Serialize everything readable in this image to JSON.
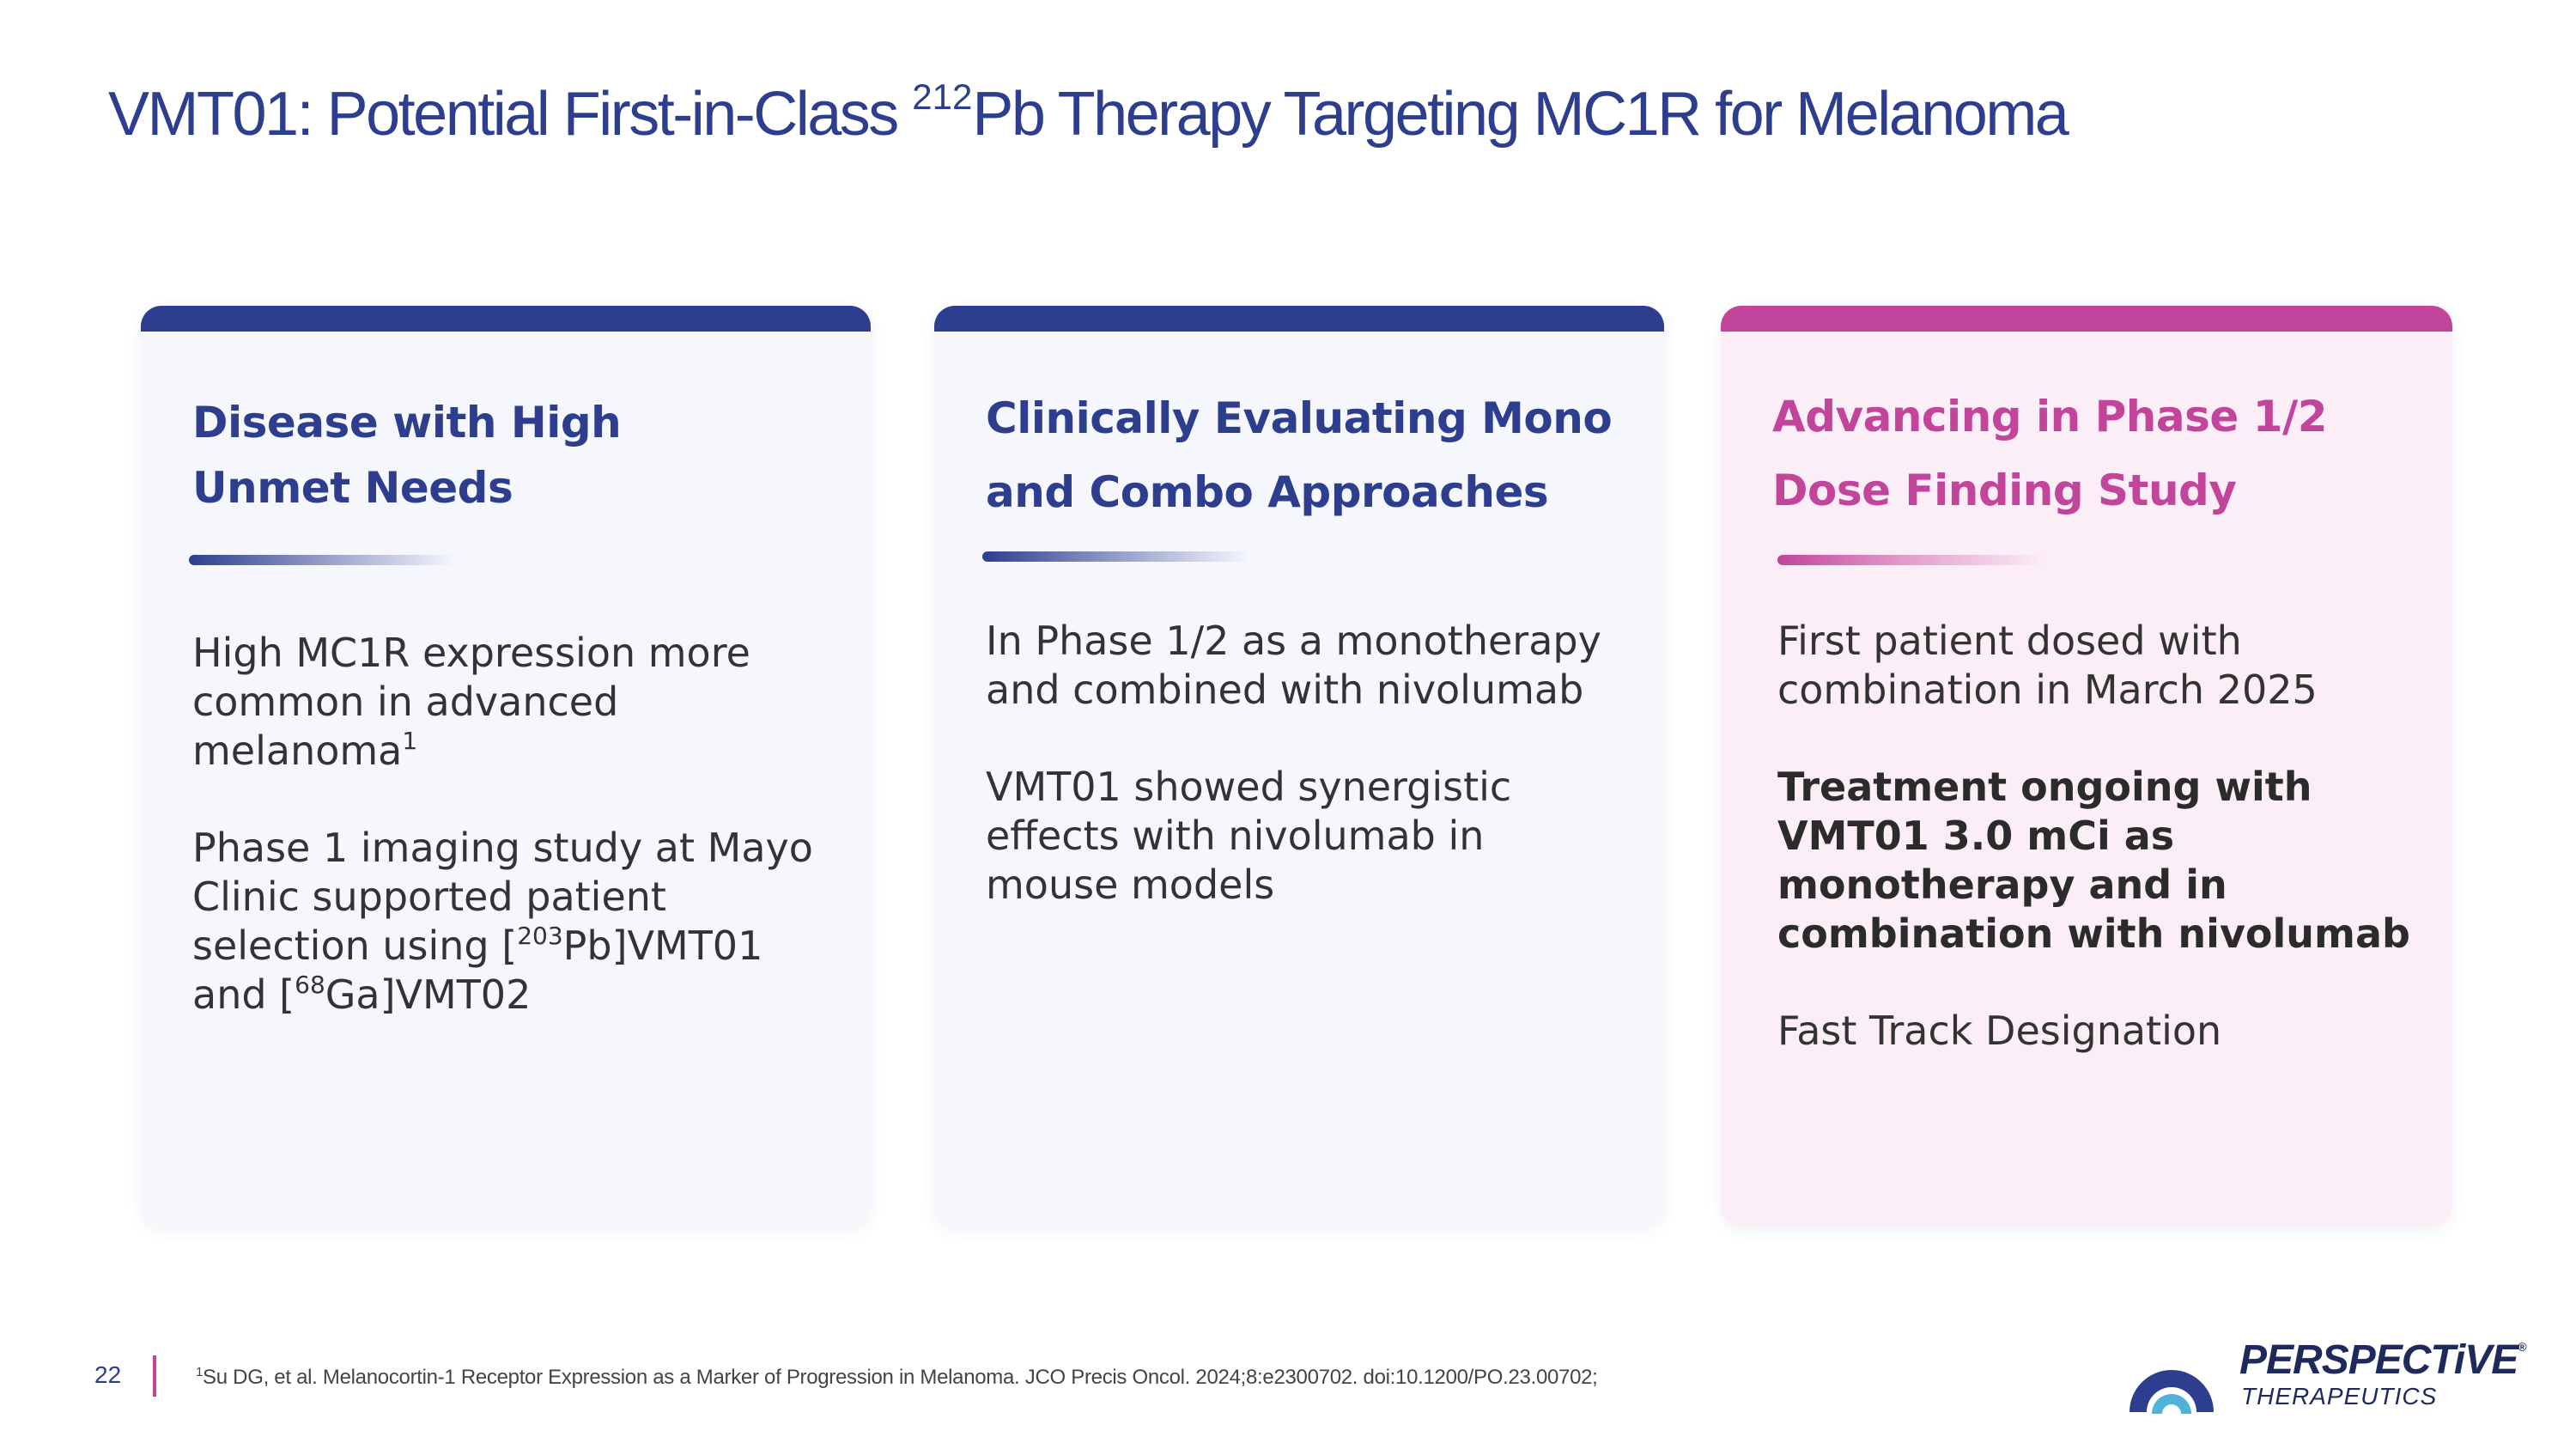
{
  "title": {
    "prefix": "VMT01:  Potential First-in-Class ",
    "isotope_mass": "212",
    "suffix": "Pb Therapy Targeting MC1R for Melanoma"
  },
  "cards": [
    {
      "heading": [
        "Disease with High",
        "Unmet Needs"
      ],
      "paragraphs": [
        {
          "lines": [
            "High MC1R expression more",
            "common in advanced",
            "melanoma"
          ],
          "footnote_mark": "1"
        },
        {
          "lines": [
            "Phase 1 imaging study at Mayo",
            "Clinic supported patient"
          ],
          "line3": {
            "before": "selection using [",
            "sup": "203",
            "after": "Pb]VMT01"
          },
          "line4": {
            "before": "and [",
            "sup": "68",
            "after": "Ga]VMT02"
          }
        }
      ]
    },
    {
      "heading": [
        "Clinically Evaluating Mono",
        "and Combo Approaches"
      ],
      "paragraphs": [
        {
          "lines": [
            "In Phase 1/2 as a monotherapy",
            "and combined with nivolumab"
          ]
        },
        {
          "lines": [
            "VMT01 showed synergistic",
            "effects with nivolumab in",
            "mouse models"
          ]
        }
      ]
    },
    {
      "heading": [
        "Advancing in Phase 1/2",
        "Dose Finding Study"
      ],
      "paragraphs": [
        {
          "lines": [
            "First patient dosed with",
            "combination in March 2025"
          ]
        },
        {
          "lines": [
            "Treatment ongoing with",
            "VMT01 3.0 mCi as",
            "monotherapy and in",
            "combination with nivolumab"
          ],
          "bold": true
        },
        {
          "lines": [
            "Fast Track Designation"
          ]
        }
      ]
    }
  ],
  "footer": {
    "page_number": "22",
    "footnote_mark": "1",
    "footnote": "Su DG, et al. Melanocortin-1 Receptor Expression as a Marker of Progression in Melanoma. JCO Precis Oncol. 2024;8:e2300702. doi:10.1200/PO.23.00702;"
  },
  "logo": {
    "name": "PERSPECTiVE",
    "registered": "®",
    "tagline": "THERAPEUTICS"
  },
  "colors": {
    "brand_blue": "#2e3e8f",
    "brand_magenta": "#c2449b",
    "card_blue_bg": "#f5f7fd",
    "card_pink_bg": "#fbeef6"
  }
}
